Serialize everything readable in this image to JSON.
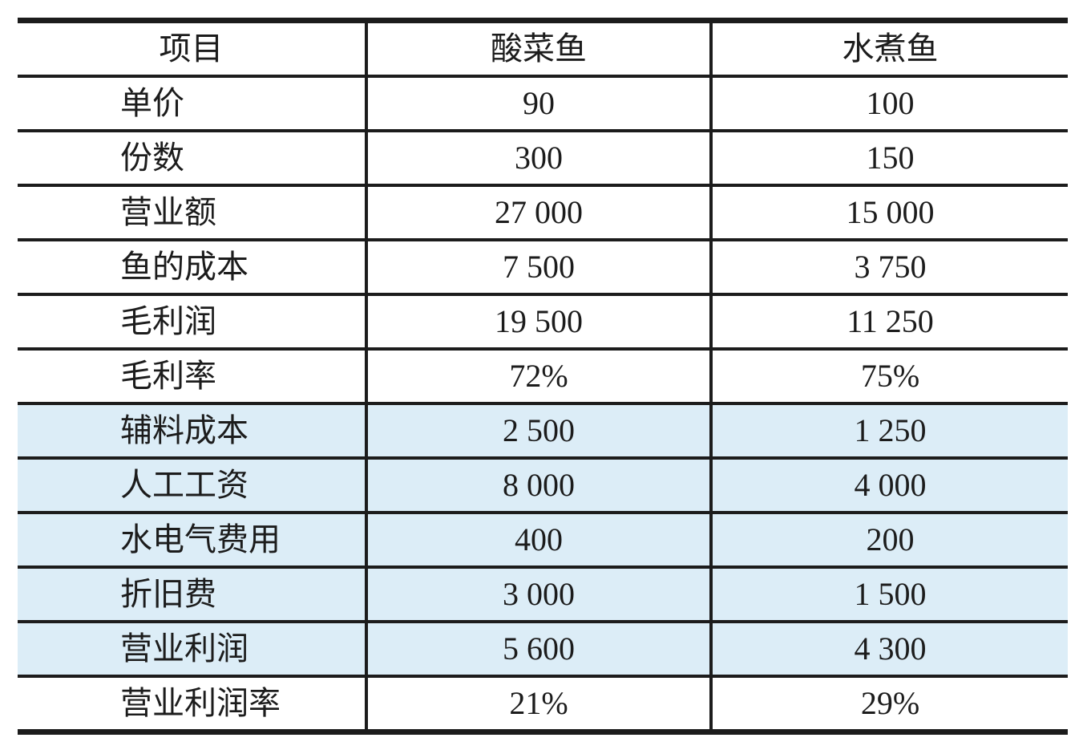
{
  "table": {
    "header": [
      "项目",
      "酸菜鱼",
      "水煮鱼"
    ],
    "rows": [
      {
        "label": "单价",
        "values": [
          "90",
          "100"
        ],
        "highlighted": false
      },
      {
        "label": "份数",
        "values": [
          "300",
          "150"
        ],
        "highlighted": false
      },
      {
        "label": "营业额",
        "values": [
          "27 000",
          "15 000"
        ],
        "highlighted": false
      },
      {
        "label": "鱼的成本",
        "values": [
          "7 500",
          "3 750"
        ],
        "highlighted": false
      },
      {
        "label": "毛利润",
        "values": [
          "19 500",
          "11 250"
        ],
        "highlighted": false
      },
      {
        "label": "毛利率",
        "values": [
          "72%",
          "75%"
        ],
        "highlighted": false
      },
      {
        "label": "辅料成本",
        "values": [
          "2 500",
          "1 250"
        ],
        "highlighted": true
      },
      {
        "label": "人工工资",
        "values": [
          "8 000",
          "4 000"
        ],
        "highlighted": true
      },
      {
        "label": "水电气费用",
        "values": [
          "400",
          "200"
        ],
        "highlighted": true
      },
      {
        "label": "折旧费",
        "values": [
          "3 000",
          "1 500"
        ],
        "highlighted": true
      },
      {
        "label": "营业利润",
        "values": [
          "5 600",
          "4 300"
        ],
        "highlighted": true
      },
      {
        "label": "营业利润率",
        "values": [
          "21%",
          "29%"
        ],
        "highlighted": false
      }
    ],
    "colors": {
      "highlight": "#dcedf7",
      "ink": "#1c1c1c"
    }
  }
}
